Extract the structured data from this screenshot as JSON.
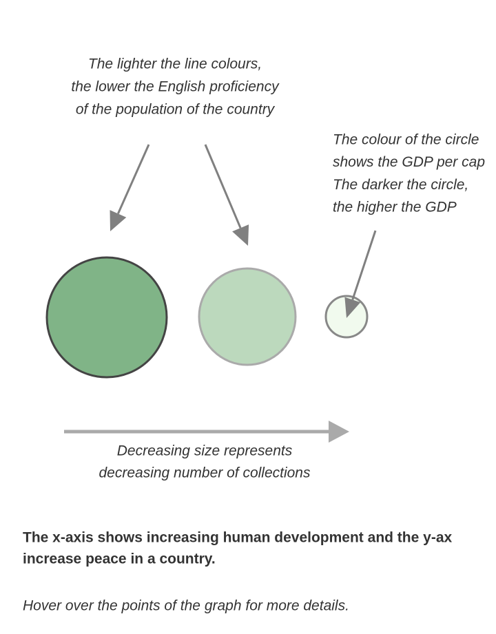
{
  "annotations": {
    "proficiency": [
      "The lighter the line colours,",
      "the lower the English proficiency",
      "of the population of the country"
    ],
    "gdp": [
      "The colour of the circle",
      "shows the GDP per cap",
      "The darker the circle,",
      "the higher the GDP"
    ],
    "size": [
      "Decreasing size represents",
      "decreasing number of collections"
    ]
  },
  "description": [
    "The x-axis shows increasing human development and the y-ax",
    "increase peace in a country."
  ],
  "hint": "Hover over the points of the graph for more details."
}
